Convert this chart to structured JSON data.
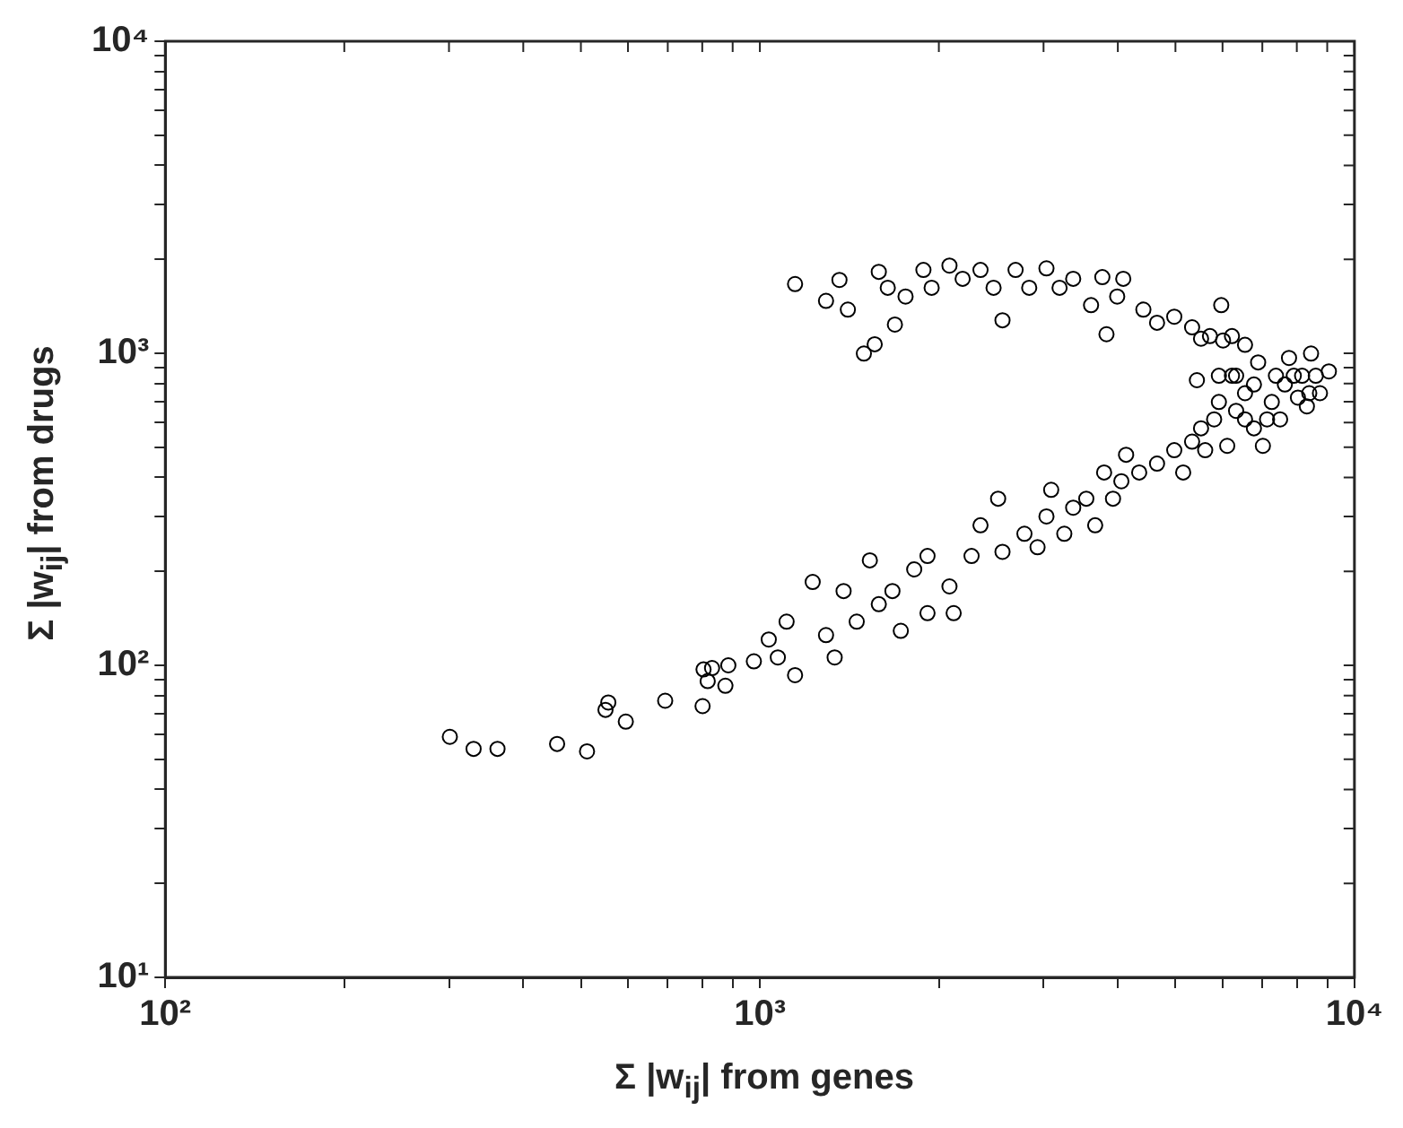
{
  "chart_data": {
    "type": "scatter",
    "xlabel": "Σ |w$_{ij}$| from genes",
    "ylabel": "Σ |w$_{ij}$| from drugs",
    "log": "xy",
    "grid": false,
    "legend": false,
    "marker": "circle",
    "xlim": [
      100,
      10000
    ],
    "ylim": [
      10,
      10000
    ],
    "xticks": [
      {
        "value": 100,
        "label": "10²"
      },
      {
        "value": 200,
        "label": null
      },
      {
        "value": 300,
        "label": null
      },
      {
        "value": 400,
        "label": null
      },
      {
        "value": 500,
        "label": null
      },
      {
        "value": 600,
        "label": null
      },
      {
        "value": 700,
        "label": null
      },
      {
        "value": 800,
        "label": null
      },
      {
        "value": 900,
        "label": null
      },
      {
        "value": 1000,
        "label": "10³"
      },
      {
        "value": 2000,
        "label": null
      },
      {
        "value": 3000,
        "label": null
      },
      {
        "value": 4000,
        "label": null
      },
      {
        "value": 5000,
        "label": null
      },
      {
        "value": 6000,
        "label": null
      },
      {
        "value": 7000,
        "label": null
      },
      {
        "value": 8000,
        "label": null
      },
      {
        "value": 9000,
        "label": null
      },
      {
        "value": 10000,
        "label": "10⁴"
      }
    ],
    "yticks": [
      {
        "value": 10,
        "label": "10¹"
      },
      {
        "value": 20,
        "label": null
      },
      {
        "value": 30,
        "label": null
      },
      {
        "value": 40,
        "label": null
      },
      {
        "value": 50,
        "label": null
      },
      {
        "value": 60,
        "label": null
      },
      {
        "value": 70,
        "label": null
      },
      {
        "value": 80,
        "label": null
      },
      {
        "value": 90,
        "label": null
      },
      {
        "value": 100,
        "label": "10²"
      },
      {
        "value": 200,
        "label": null
      },
      {
        "value": 300,
        "label": null
      },
      {
        "value": 400,
        "label": null
      },
      {
        "value": 500,
        "label": null
      },
      {
        "value": 600,
        "label": null
      },
      {
        "value": 700,
        "label": null
      },
      {
        "value": 800,
        "label": null
      },
      {
        "value": 900,
        "label": null
      },
      {
        "value": 1000,
        "label": "10³"
      },
      {
        "value": 2000,
        "label": null
      },
      {
        "value": 3000,
        "label": null
      },
      {
        "value": 4000,
        "label": null
      },
      {
        "value": 5000,
        "label": null
      },
      {
        "value": 6000,
        "label": null
      },
      {
        "value": 7000,
        "label": null
      },
      {
        "value": 8000,
        "label": null
      },
      {
        "value": 9000,
        "label": null
      },
      {
        "value": 10000,
        "label": "10⁴"
      }
    ],
    "series": [
      {
        "color": "#000000",
        "x": [
          301,
          330,
          362,
          456,
          512,
          550,
          556,
          595,
          693,
          801,
          804,
          817,
          831,
          875,
          885,
          977,
          1035,
          1072,
          1109,
          1146,
          1227,
          1292,
          1336,
          1383,
          1455,
          1531,
          1585,
          1671,
          1726,
          1818,
          1914,
          1914,
          2084,
          2118,
          2270,
          2350,
          2516,
          2559,
          2786,
          2931,
          3034,
          3090,
          3251,
          3365,
          3540,
          3664,
          3793,
          3926,
          4055,
          4345,
          4130,
          4656,
          4977,
          5152,
          5333,
          5521,
          5610,
          5808,
          5916,
          6110,
          6223,
          6324,
          6546,
          6776,
          6887,
          7015,
          7261,
          7379,
          7499,
          7638,
          7762,
          8035,
          8166,
          8318,
          8453,
          8610,
          8750,
          9057,
          8395,
          6776,
          6546,
          7129,
          7907,
          6324,
          5916,
          6012,
          5715,
          5433,
          1146,
          1292,
          1361,
          1406,
          1496,
          1560,
          1585,
          1641,
          1687,
          1758,
          1884,
          1945,
          2084,
          2193,
          2350,
          2472,
          2559,
          2692,
          2838,
          3034,
          3192,
          3365,
          3606,
          3767,
          3828,
          3990,
          4085,
          4416,
          4656,
          4977,
          5333,
          5521,
          5970,
          6223,
          6546
        ],
        "values": [
          59,
          54,
          54,
          56,
          53,
          72,
          76,
          66,
          77,
          74,
          97,
          89,
          98,
          86,
          100,
          103,
          121,
          106,
          138,
          93,
          185,
          125,
          106,
          173,
          138,
          217,
          157,
          173,
          129,
          203,
          224,
          147,
          179,
          147,
          224,
          281,
          342,
          231,
          264,
          239,
          300,
          365,
          264,
          320,
          342,
          281,
          415,
          342,
          389,
          415,
          473,
          443,
          489,
          415,
          521,
          575,
          489,
          614,
          698,
          505,
          847,
          654,
          745,
          575,
          935,
          505,
          698,
          847,
          614,
          794,
          966,
          721,
          847,
          676,
          998,
          847,
          745,
          875,
          745,
          794,
          614,
          614,
          847,
          847,
          847,
          1099,
          1135,
          820,
          1667,
          1472,
          1718,
          1380,
          998,
          1069,
          1824,
          1622,
          1236,
          1520,
          1849,
          1622,
          1910,
          1733,
          1849,
          1622,
          1276,
          1849,
          1622,
          1871,
          1622,
          1733,
          1426,
          1754,
          1151,
          1520,
          1733,
          1380,
          1253,
          1310,
          1211,
          1114,
          1426,
          1135,
          1064
        ]
      }
    ]
  }
}
